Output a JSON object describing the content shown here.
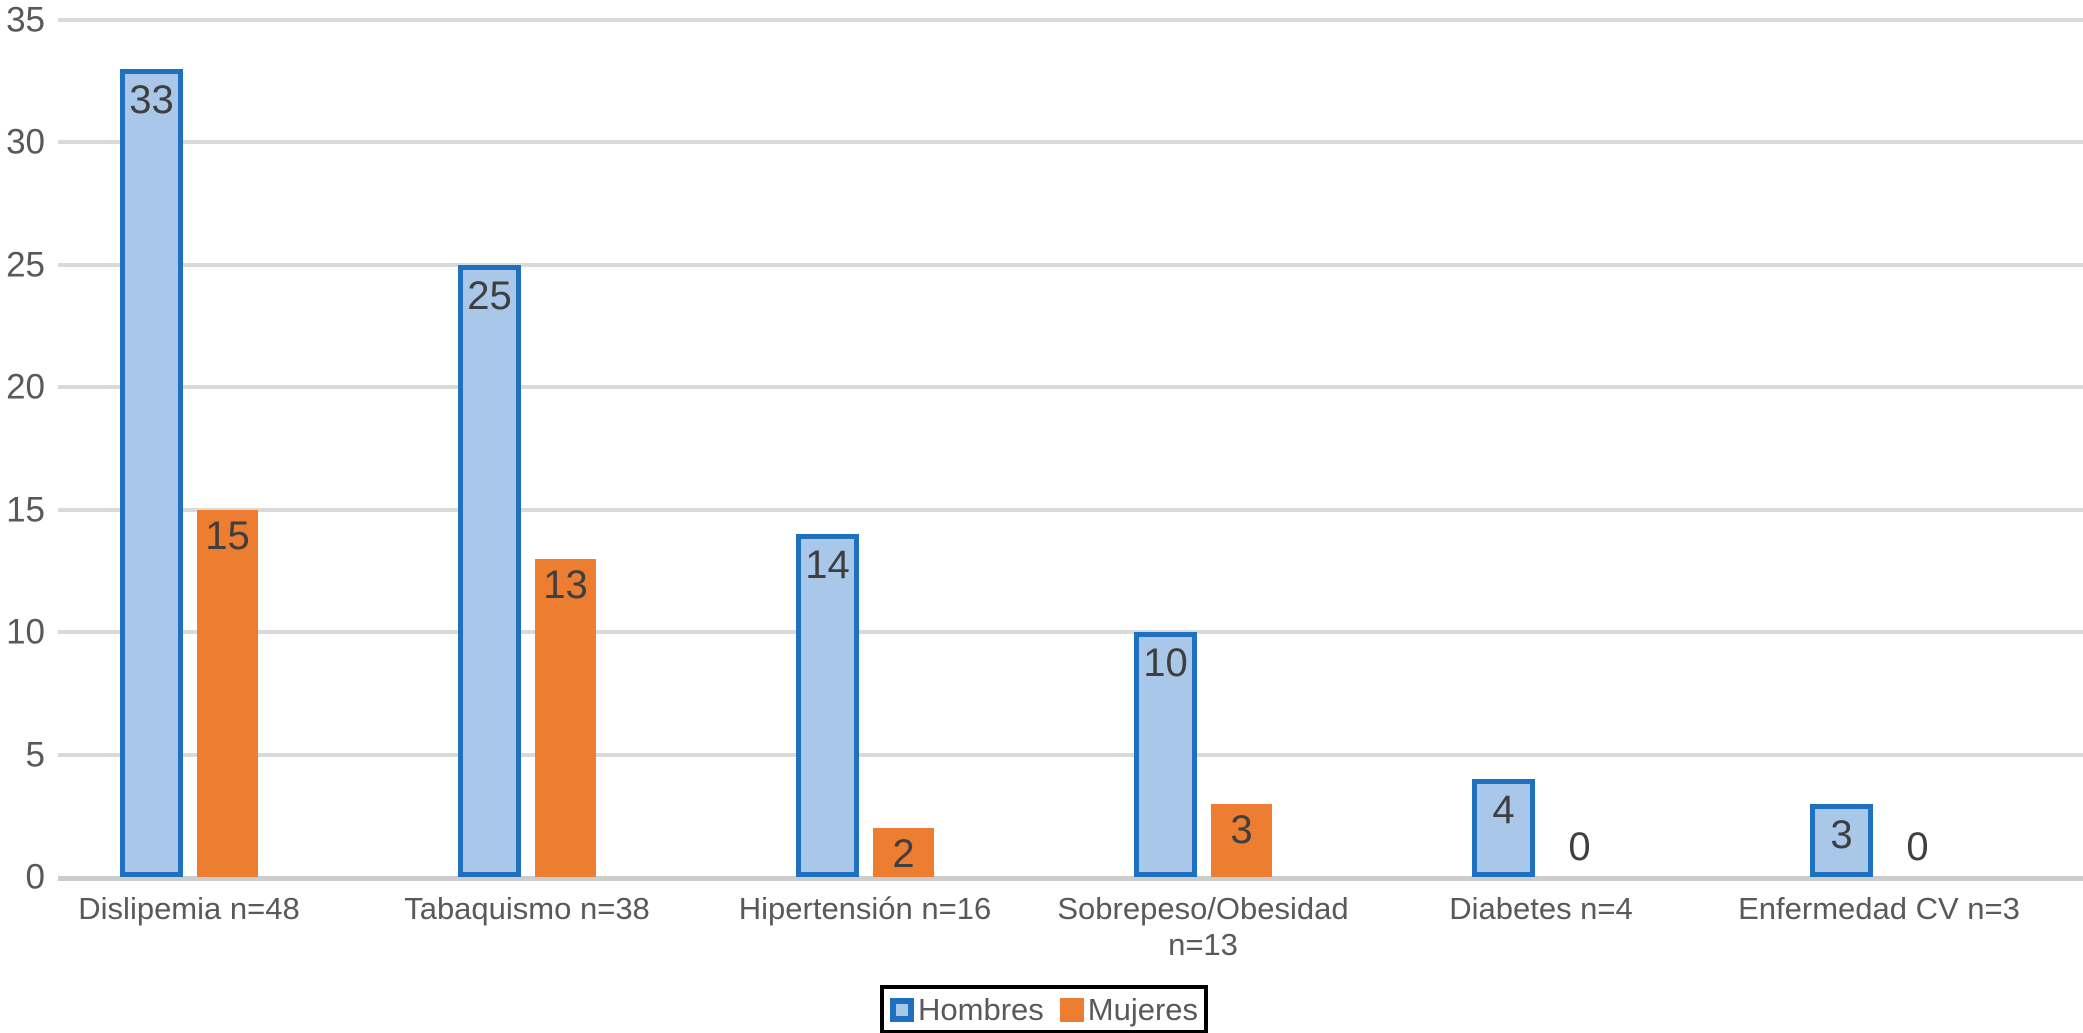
{
  "chart_data": {
    "type": "bar",
    "categories": [
      "Dislipemia n=48",
      "Tabaquismo n=38",
      "Hipertensión n=16",
      "Sobrepeso/Obesidad n=13",
      "Diabetes n=4",
      "Enfermedad CV n=3"
    ],
    "series": [
      {
        "name": "Hombres",
        "values": [
          33,
          25,
          14,
          10,
          4,
          3
        ],
        "fill": "#a9c7e9",
        "border": "#1f70be"
      },
      {
        "name": "Mujeres",
        "values": [
          15,
          13,
          2,
          3,
          0,
          0
        ],
        "fill": "#ed7d31",
        "border": null
      }
    ],
    "title": "",
    "xlabel": "",
    "ylabel": "",
    "ylim": [
      0,
      35
    ],
    "yticks": [
      0,
      5,
      10,
      15,
      20,
      25,
      30,
      35
    ],
    "ytick_labels": [
      "0",
      "5",
      "10",
      "15",
      "20",
      "25",
      "30",
      "35"
    ],
    "grid": true,
    "data_labels": true,
    "legend_position": "bottom",
    "legend_items": [
      "Hombres",
      "Mujeres"
    ]
  },
  "colors": {
    "hombres_fill": "#a9c7e9",
    "hombres_border": "#1f70be",
    "mujeres_fill": "#ed7d31",
    "gridline": "#dadada",
    "axis_line": "#cccccc",
    "tick_text": "#595959",
    "data_label_text": "#3f3f3f",
    "legend_border": "#000000",
    "background": "#ffffff"
  }
}
